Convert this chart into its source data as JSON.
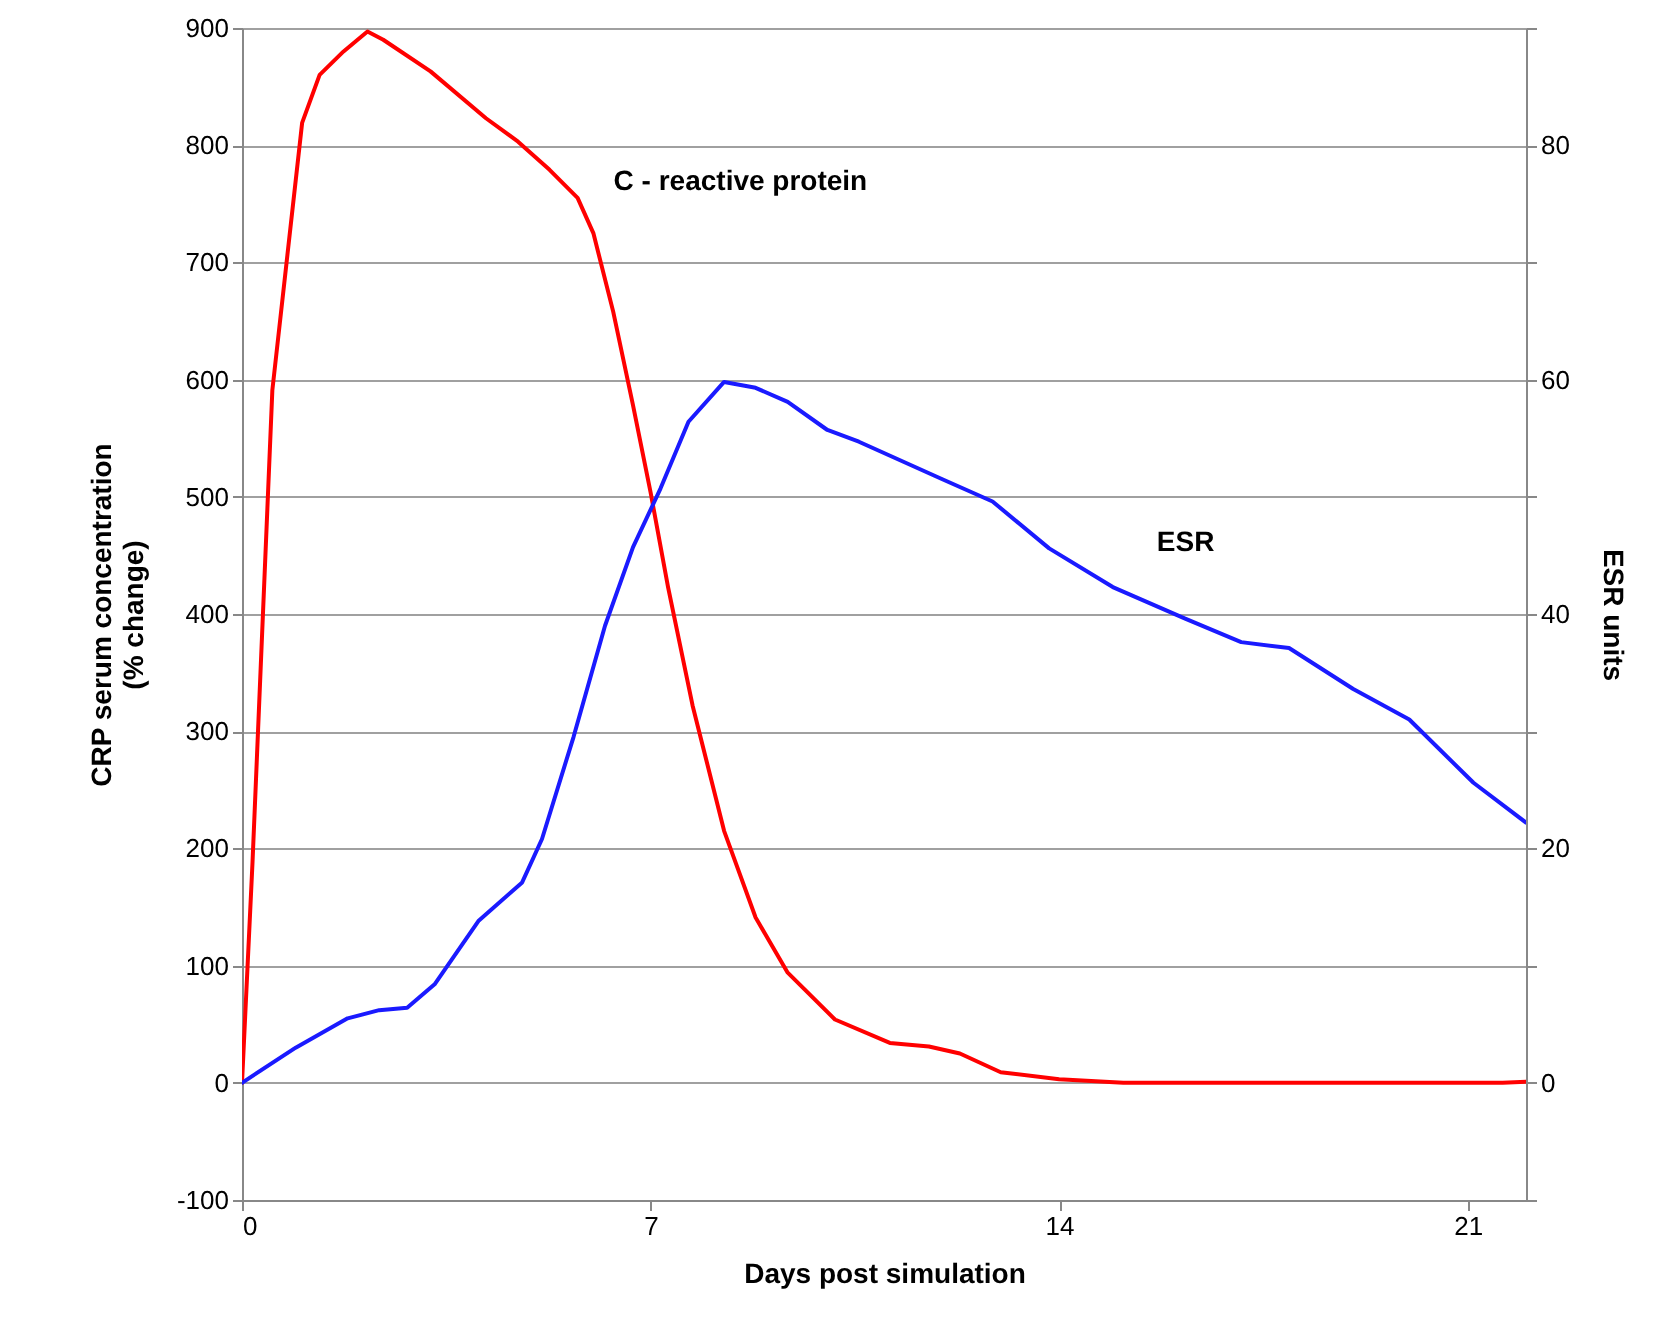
{
  "chart_data": {
    "type": "line",
    "xlabel": "Days post simulation",
    "ylabel": "CRP serum concentration\n(% change)",
    "y2label": "ESR units",
    "xlim": [
      0,
      22
    ],
    "xticks": [
      0,
      7,
      14,
      21
    ],
    "ylim": [
      -100,
      900
    ],
    "yticks": [
      -100,
      0,
      100,
      200,
      300,
      400,
      500,
      600,
      700,
      800,
      900
    ],
    "y2lim": [
      -10,
      90
    ],
    "y2ticks": [
      {
        "value": -10,
        "label": null
      },
      0,
      {
        "value": 10,
        "label": null
      },
      20,
      {
        "value": 30,
        "label": null
      },
      40,
      {
        "value": 50,
        "label": null
      },
      60,
      {
        "value": 70,
        "label": null
      },
      80,
      {
        "value": 90,
        "label": null
      }
    ],
    "grid": "y",
    "marker": "none",
    "line_style": "solid",
    "series": [
      {
        "name": "C - reactive protein",
        "color": "#ff0000",
        "x": [
          0,
          0.18,
          0.52,
          1.03,
          1.33,
          1.74,
          2.15,
          2.42,
          3.23,
          4.18,
          4.73,
          5.27,
          5.75,
          6.02,
          6.36,
          6.7,
          7.0,
          7.3,
          7.72,
          8.26,
          8.8,
          9.35,
          10.16,
          11.1,
          11.77,
          12.3,
          13.0,
          14.0,
          15.1,
          17.8,
          19.9,
          21.6,
          22
        ],
        "values": [
          0,
          188,
          591,
          819,
          860,
          880,
          897,
          890,
          863,
          823,
          803,
          779,
          755,
          725,
          658,
          578,
          504,
          423,
          322,
          215,
          141,
          94,
          54,
          34,
          31,
          25,
          9,
          3,
          0,
          0,
          0,
          0,
          1
        ]
      },
      {
        "name": "ESR",
        "color": "#1a1aff",
        "axis": "y2",
        "x": [
          0,
          0.92,
          1.81,
          2.35,
          2.83,
          3.3,
          4.05,
          4.8,
          5.14,
          5.68,
          6.22,
          6.7,
          7.17,
          7.65,
          8.26,
          8.8,
          9.35,
          10.03,
          10.57,
          12.0,
          12.86,
          13.83,
          14.92,
          16.16,
          17.12,
          17.94,
          19.04,
          20.0,
          21.1,
          22.0
        ],
        "values": [
          0,
          3.0,
          5.5,
          6.2,
          6.4,
          8.4,
          13.8,
          17.1,
          20.8,
          29.5,
          39.0,
          45.7,
          50.7,
          56.4,
          59.8,
          59.3,
          58.1,
          55.7,
          54.7,
          51.5,
          49.6,
          45.6,
          42.3,
          39.6,
          37.6,
          37.1,
          33.6,
          31.0,
          25.6,
          22.2
        ]
      }
    ]
  }
}
